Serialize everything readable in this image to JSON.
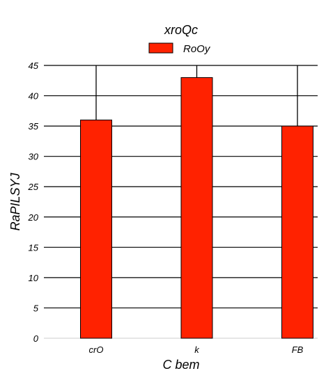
{
  "chart_data": {
    "type": "bar",
    "title": "xroQc",
    "xlabel": "C bem",
    "ylabel": "RaPILSYJ",
    "categories": [
      "crO",
      "k",
      "FB"
    ],
    "series": [
      {
        "name": "RoOy",
        "values": [
          36,
          43,
          35
        ],
        "color": "#ff2200",
        "error_upper": [
          45,
          45,
          45
        ]
      }
    ],
    "ylim": [
      0,
      45
    ],
    "yticks": [
      0,
      5,
      10,
      15,
      20,
      25,
      30,
      35,
      40,
      45
    ],
    "ytick_labels": [
      "0",
      "5",
      "10",
      "15",
      "20",
      "25",
      "30",
      "35",
      "40",
      "45"
    ],
    "grid": true,
    "legend_position": "top-center"
  }
}
